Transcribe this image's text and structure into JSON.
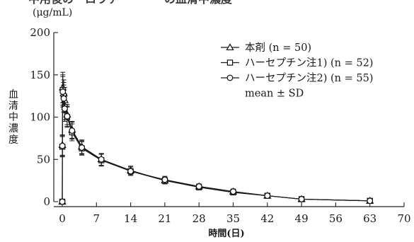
{
  "chart_data": {
    "type": "line",
    "title": "中用後の　ロウテ　　　　の血清中濃度",
    "ylabel": "血清中濃度",
    "yunit": "(μg/mL)",
    "xlabel": "時間(日)",
    "xlim": [
      0,
      70
    ],
    "ylim": [
      0,
      200
    ],
    "x_ticks": [
      0,
      7,
      14,
      21,
      28,
      35,
      42,
      49,
      56,
      63,
      70
    ],
    "y_ticks": [
      0,
      50,
      100,
      150,
      200
    ],
    "grid": false,
    "legend_position": "top-right",
    "legend_note": "mean ± SD",
    "series": [
      {
        "name": "本剤 (n = 50)",
        "marker": "triangle",
        "x": [
          0,
          0.02,
          0.1,
          0.3,
          0.5,
          1,
          2,
          4,
          8,
          14,
          21,
          28,
          35,
          42,
          49,
          63
        ],
        "y": [
          0,
          67,
          135,
          128,
          120,
          103,
          85,
          65,
          50,
          37,
          25,
          18,
          12,
          7,
          3,
          1
        ],
        "sd": [
          0,
          12,
          18,
          16,
          15,
          12,
          10,
          8,
          7,
          5,
          4,
          3,
          3,
          2,
          1,
          0.5
        ]
      },
      {
        "name": "ハーセプチン注1) (n = 52)",
        "marker": "square",
        "x": [
          0,
          0.02,
          0.1,
          0.3,
          0.5,
          1,
          2,
          4,
          8,
          14,
          21,
          28,
          35,
          42,
          49,
          63
        ],
        "y": [
          0,
          65,
          132,
          125,
          112,
          100,
          82,
          63,
          49,
          36,
          25,
          17,
          11,
          7,
          3,
          1
        ],
        "sd": [
          0,
          12,
          18,
          16,
          15,
          12,
          10,
          8,
          7,
          5,
          4,
          3,
          3,
          2,
          1,
          0.5
        ]
      },
      {
        "name": "ハーセプチン注2) (n = 55)",
        "marker": "circle",
        "x": [
          0,
          0.02,
          0.1,
          0.3,
          0.5,
          1,
          2,
          4,
          8,
          14,
          21,
          28,
          35,
          42,
          49,
          63
        ],
        "y": [
          0,
          66,
          130,
          122,
          110,
          101,
          84,
          64,
          50,
          36,
          26,
          18,
          12,
          7,
          3,
          1
        ],
        "sd": [
          0,
          12,
          18,
          16,
          15,
          12,
          10,
          8,
          7,
          5,
          4,
          3,
          3,
          2,
          1,
          0.5
        ]
      }
    ]
  }
}
